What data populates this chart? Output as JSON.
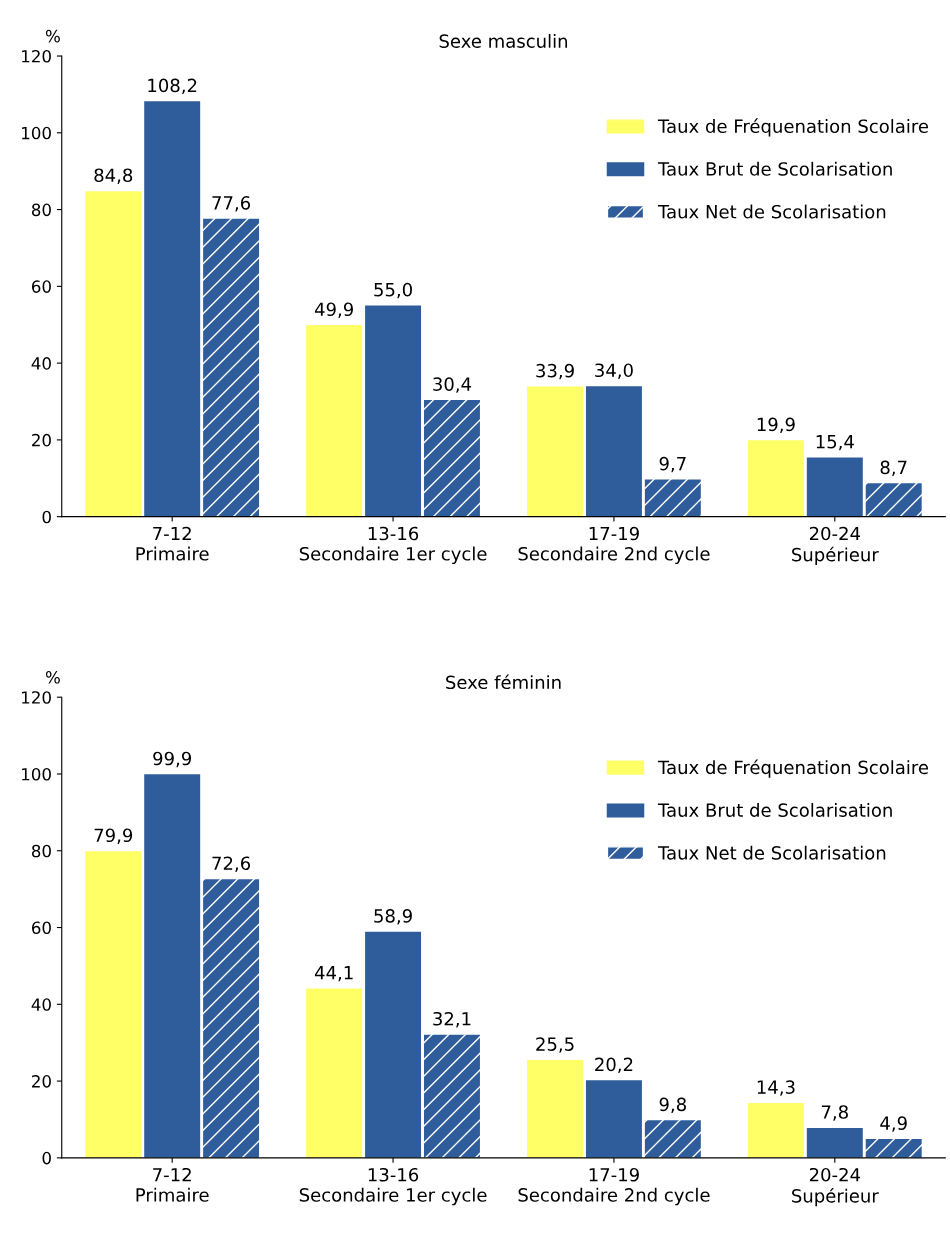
{
  "chart_data": [
    {
      "type": "bar",
      "title": "Sexe masculin",
      "ylabel": "%",
      "categories": [
        "7-12\nPrimaire",
        "13-16\nSecondaire 1er cycle",
        "17-19\nSecondaire 2nd cycle",
        "20-24\nSupérieur"
      ],
      "ylim": [
        0,
        120
      ],
      "yticks": [
        0,
        20,
        40,
        60,
        80,
        100,
        120
      ],
      "grid": false,
      "legend": "top right",
      "series": [
        {
          "name": "Taux de Fréquenation Scolaire",
          "color": "#ffff66",
          "values": [
            84.8,
            49.9,
            33.9,
            19.9
          ],
          "value_labels": [
            "84,8",
            "49,9",
            "33,9",
            "19,9"
          ]
        },
        {
          "name": "Taux Brut de Scolarisation",
          "color": "#2f5d9c",
          "values": [
            108.2,
            55.0,
            34.0,
            15.4
          ],
          "value_labels": [
            "108,2",
            "55,0",
            "34,0",
            "15,4"
          ]
        },
        {
          "name": "Taux Net de Scolarisation",
          "color": "#2f5d9c",
          "values": [
            77.6,
            30.4,
            9.7,
            8.7
          ],
          "value_labels": [
            "77,6",
            "30,4",
            "9,7",
            "8,7"
          ]
        }
      ]
    },
    {
      "type": "bar",
      "title": "Sexe féminin",
      "ylabel": "%",
      "categories": [
        "7-12\nPrimaire",
        "13-16\nSecondaire 1er cycle",
        "17-19\nSecondaire 2nd cycle",
        "20-24\nSupérieur"
      ],
      "ylim": [
        0,
        120
      ],
      "yticks": [
        0,
        20,
        40,
        60,
        80,
        100,
        120
      ],
      "grid": false,
      "legend": "top right",
      "series": [
        {
          "name": "Taux de Fréquenation Scolaire",
          "color": "#ffff66",
          "values": [
            79.9,
            44.1,
            25.5,
            14.3
          ],
          "value_labels": [
            "79,9",
            "44,1",
            "25,5",
            "14,3"
          ]
        },
        {
          "name": "Taux Brut de Scolarisation",
          "color": "#2f5d9c",
          "values": [
            99.9,
            58.9,
            20.2,
            7.8
          ],
          "value_labels": [
            "99,9",
            "58,9",
            "20,2",
            "7,8"
          ]
        },
        {
          "name": "Taux Net de Scolarisation",
          "color": "#2f5d9c",
          "values": [
            72.6,
            32.1,
            9.8,
            4.9
          ],
          "value_labels": [
            "72,6",
            "32,1",
            "9,8",
            "4,9"
          ]
        }
      ]
    }
  ]
}
